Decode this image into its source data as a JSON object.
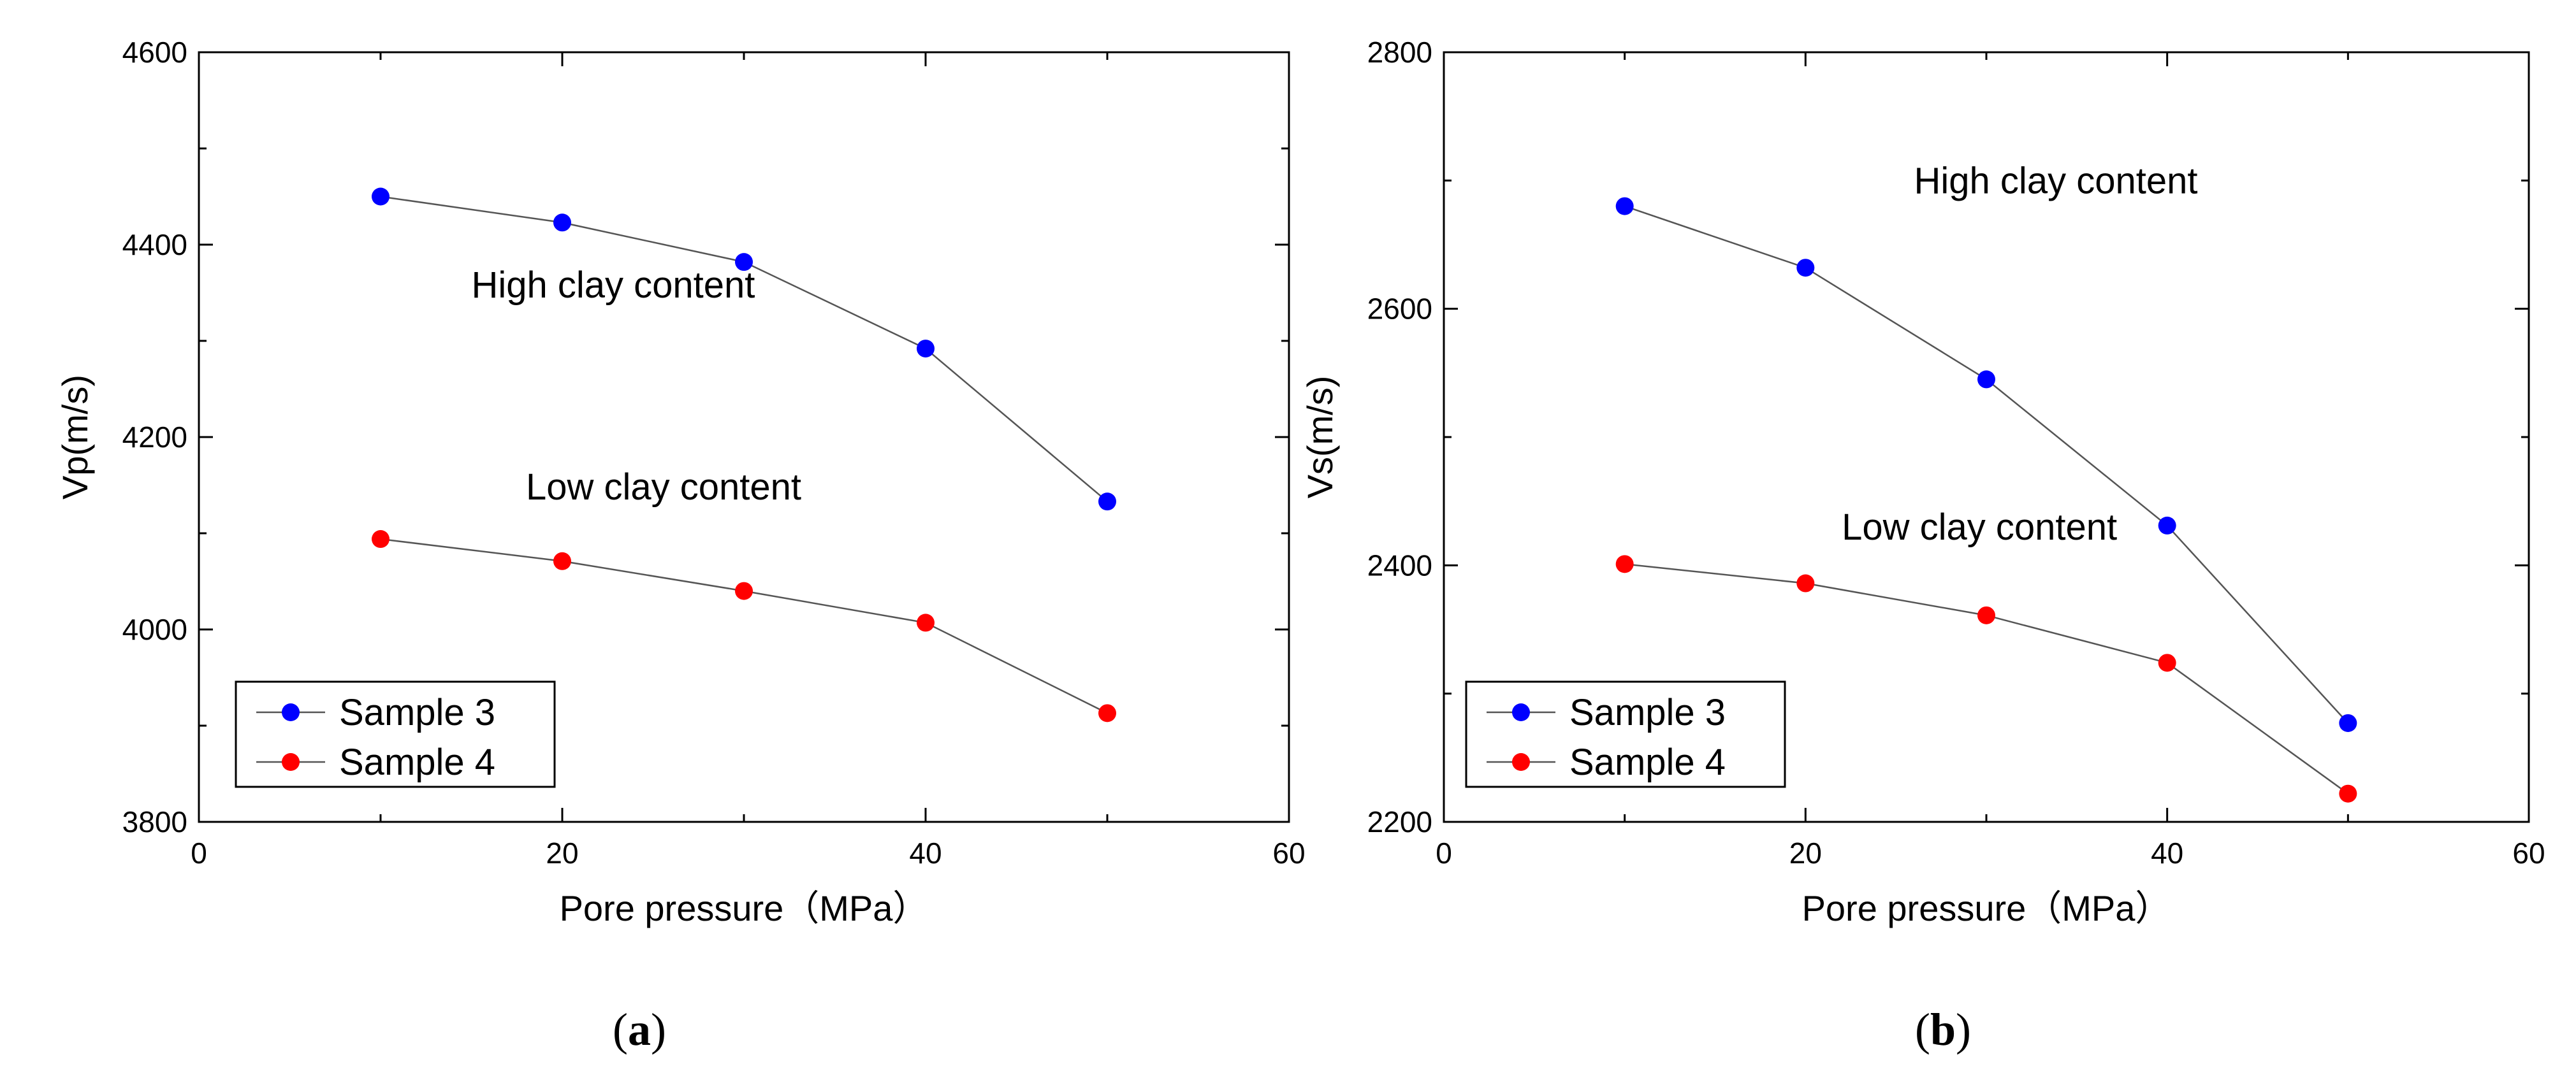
{
  "chart_data": [
    {
      "type": "line",
      "panel_label": "(a)",
      "panel_letter": "a",
      "xlabel": "Pore pressure（MPa）",
      "ylabel": "Vp(m/s)",
      "xlim": [
        0,
        60
      ],
      "ylim": [
        3800,
        4600
      ],
      "xticks": [
        0,
        20,
        40,
        60
      ],
      "yticks": [
        3800,
        4000,
        4200,
        4400,
        4600
      ],
      "x": [
        10,
        20,
        30,
        40,
        50
      ],
      "series": [
        {
          "name": "Sample 3",
          "color": "#0000ff",
          "values": [
            4450,
            4423,
            4382,
            4292,
            4133
          ]
        },
        {
          "name": "Sample 4",
          "color": "#ff0000",
          "values": [
            4094,
            4071,
            4040,
            4007,
            3913
          ]
        }
      ],
      "annotations": [
        {
          "text": "High clay content",
          "x": 15,
          "y": 4345
        },
        {
          "text": "Low clay content",
          "x": 18,
          "y": 4135
        }
      ],
      "legend_position": "bottom-left"
    },
    {
      "type": "line",
      "panel_label": "(b)",
      "panel_letter": "b",
      "xlabel": "Pore pressure（MPa）",
      "ylabel": "Vs(m/s)",
      "xlim": [
        0,
        60
      ],
      "ylim": [
        2200,
        2800
      ],
      "xticks": [
        0,
        20,
        40,
        60
      ],
      "yticks": [
        2200,
        2400,
        2600,
        2800
      ],
      "x": [
        10,
        20,
        30,
        40,
        50
      ],
      "series": [
        {
          "name": "Sample 3",
          "color": "#0000ff",
          "values": [
            2680,
            2632,
            2545,
            2431,
            2277
          ]
        },
        {
          "name": "Sample 4",
          "color": "#ff0000",
          "values": [
            2401,
            2386,
            2361,
            2324,
            2222
          ]
        }
      ],
      "annotations": [
        {
          "text": "High clay content",
          "x": 26,
          "y": 2690
        },
        {
          "text": "Low clay content",
          "x": 22,
          "y": 2420
        }
      ],
      "legend_position": "bottom-left"
    }
  ]
}
